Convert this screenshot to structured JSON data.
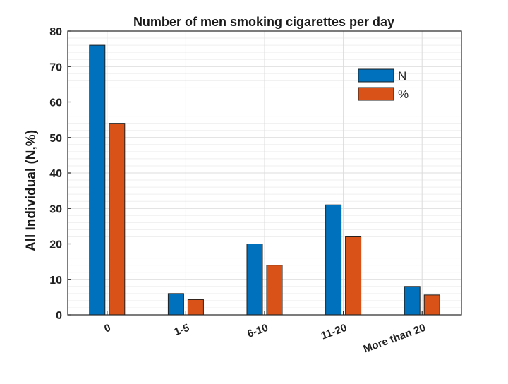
{
  "chart_data": {
    "type": "bar",
    "title": "Number of men smoking cigarettes per day",
    "xlabel": "",
    "ylabel": "All Individual (N,%)",
    "categories": [
      "0",
      "1-5",
      "6-10",
      "11-20",
      "More than 20"
    ],
    "series": [
      {
        "name": "N",
        "values": [
          76,
          6,
          20,
          31,
          8
        ],
        "color": "#0072BD"
      },
      {
        "name": "%",
        "values": [
          54,
          4.3,
          14,
          22,
          5.6
        ],
        "color": "#D95319"
      }
    ],
    "ylim": [
      0,
      80
    ],
    "yticks": [
      "0",
      "10",
      "20",
      "30",
      "40",
      "50",
      "60",
      "70",
      "80"
    ],
    "grid": true,
    "legend_position": "top-right"
  }
}
